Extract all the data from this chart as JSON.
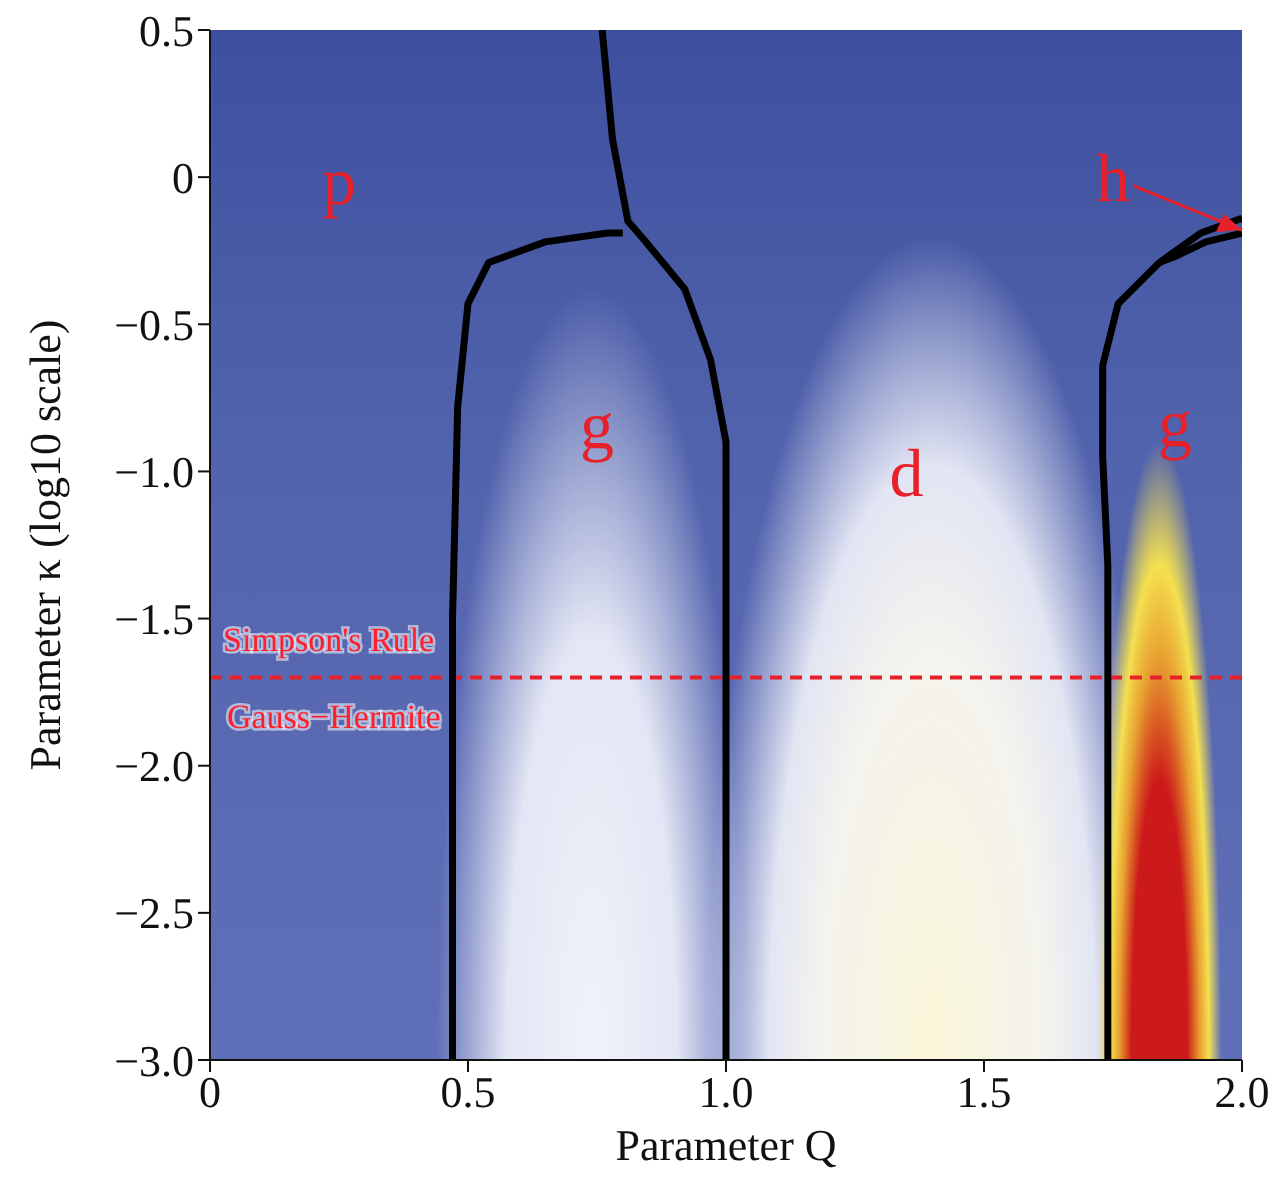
{
  "chart_data": {
    "type": "line",
    "xlabel": "Parameter Q",
    "ylabel": "Parameter κ (log10 scale)",
    "xlim": [
      0,
      2
    ],
    "xticks": [
      0,
      0.5,
      {
        "value": 1,
        "label": "1.0"
      },
      1.5,
      {
        "value": 2,
        "label": "2.0"
      }
    ],
    "ylim": [
      -3,
      0.5
    ],
    "yticks": [
      0.5,
      0,
      {
        "value": -0.5,
        "label": "−0.5"
      },
      {
        "value": -1,
        "label": "−1.0"
      },
      {
        "value": -1.5,
        "label": "−1.5"
      },
      {
        "value": -2,
        "label": "−2.0"
      },
      {
        "value": -2.5,
        "label": "−2.5"
      },
      {
        "value": -3,
        "label": "−3.0"
      }
    ],
    "grid": false,
    "legend": false,
    "marker": "none",
    "line_style": "solid",
    "series": [
      {
        "type": "line",
        "color": "#000000",
        "x": [
          0.47,
          0.47,
          0.48,
          0.5,
          0.54,
          0.65,
          0.77,
          0.8
        ],
        "values": [
          -3,
          -1.5,
          -0.78,
          -0.43,
          -0.29,
          -0.22,
          -0.19,
          -0.19
        ]
      },
      {
        "type": "line",
        "color": "#000000",
        "x": [
          1.0,
          1.0,
          1.0,
          0.97,
          0.92,
          0.84,
          0.81,
          0.78,
          0.76
        ],
        "values": [
          -3,
          -1.13,
          -0.9,
          -0.62,
          -0.38,
          -0.21,
          -0.15,
          0.13,
          0.5
        ]
      },
      {
        "type": "line",
        "color": "#000000",
        "x": [
          1.74,
          1.74,
          1.73,
          1.73,
          1.76,
          1.84,
          1.92,
          2.0
        ],
        "values": [
          -3,
          -1.32,
          -0.95,
          -0.64,
          -0.43,
          -0.29,
          -0.19,
          -0.14
        ]
      },
      {
        "type": "line",
        "color": "#000000",
        "x": [
          1.84,
          1.87,
          1.93,
          2.0
        ],
        "values": [
          -0.29,
          -0.27,
          -0.22,
          -0.19
        ]
      }
    ],
    "ref_lines": [
      {
        "axis": "y",
        "value": -1.7,
        "color": "#e8202a",
        "line_style": "dashed"
      }
    ],
    "annotations": [
      "p",
      "g",
      "d",
      "g",
      {
        "text": "h",
        "x": 2.0,
        "y": -0.18
      },
      "Simpson's Rule",
      "Gauss−Hermite"
    ]
  }
}
